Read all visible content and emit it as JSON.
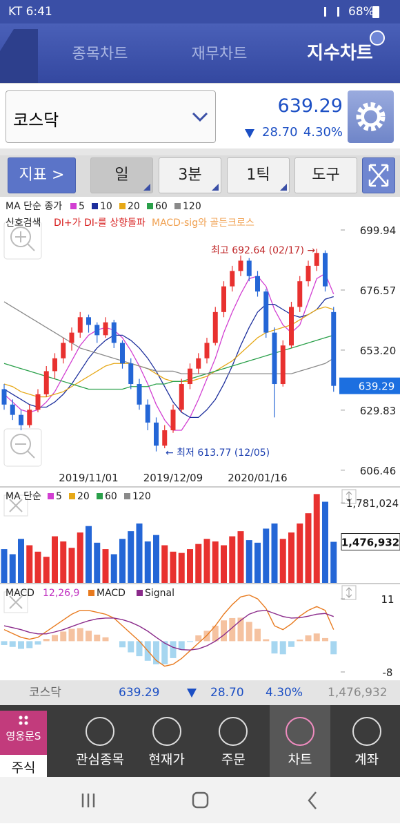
{
  "status_bar": {
    "carrier_time": "KT 6:41",
    "battery": "68%"
  },
  "tabs": [
    "종목차트",
    "재무차트",
    "지수차트"
  ],
  "active_tab": 2,
  "index_selector": {
    "name": "코스닥",
    "price": "639.29",
    "change": "28.70",
    "change_pct": "4.30%"
  },
  "toolbar": {
    "indicator": "지표",
    "periods": [
      "일",
      "3분",
      "1틱"
    ],
    "active_period": 0,
    "tool": "도구"
  },
  "chart": {
    "type": "candlestick",
    "candles": [
      [
        638,
        640,
        630,
        632
      ],
      [
        632,
        634,
        626,
        628
      ],
      [
        628,
        630,
        622,
        624
      ],
      [
        624,
        632,
        623,
        630
      ],
      [
        630,
        638,
        629,
        636
      ],
      [
        636,
        647,
        635,
        645
      ],
      [
        645,
        652,
        642,
        650
      ],
      [
        650,
        658,
        648,
        656
      ],
      [
        656,
        662,
        653,
        660
      ],
      [
        660,
        668,
        658,
        666
      ],
      [
        666,
        667,
        660,
        663
      ],
      [
        663,
        664,
        656,
        659
      ],
      [
        659,
        666,
        658,
        664
      ],
      [
        664,
        665,
        654,
        656
      ],
      [
        656,
        657,
        646,
        648
      ],
      [
        648,
        650,
        638,
        640
      ],
      [
        640,
        642,
        630,
        632
      ],
      [
        632,
        634,
        622,
        625
      ],
      [
        625,
        627,
        613.77,
        616
      ],
      [
        616,
        624,
        615,
        622
      ],
      [
        622,
        632,
        621,
        630
      ],
      [
        630,
        642,
        629,
        640
      ],
      [
        640,
        648,
        638,
        646
      ],
      [
        646,
        652,
        644,
        650
      ],
      [
        650,
        658,
        648,
        656
      ],
      [
        656,
        670,
        655,
        668
      ],
      [
        668,
        680,
        666,
        678
      ],
      [
        678,
        686,
        676,
        684
      ],
      [
        684,
        690,
        682,
        688
      ],
      [
        688,
        689,
        680,
        682
      ],
      [
        682,
        684,
        674,
        676
      ],
      [
        676,
        677,
        658,
        660
      ],
      [
        660,
        662,
        627,
        640
      ],
      [
        640,
        657,
        639,
        655
      ],
      [
        655,
        672,
        654,
        670
      ],
      [
        670,
        682,
        668,
        680
      ],
      [
        680,
        688,
        678,
        686
      ],
      [
        686,
        692.64,
        684,
        691
      ],
      [
        691,
        692,
        676,
        678
      ],
      [
        668,
        670,
        637,
        639.29
      ]
    ],
    "categories": [
      null,
      null,
      null,
      null,
      null,
      null,
      null,
      null,
      null,
      null,
      "2019/11/01",
      null,
      null,
      null,
      null,
      null,
      null,
      null,
      null,
      null,
      "2019/12/09",
      null,
      null,
      null,
      null,
      null,
      null,
      null,
      null,
      null,
      "2020/01/16",
      null,
      null,
      null,
      null,
      null,
      null,
      null,
      null,
      null
    ],
    "ylim": [
      600.5,
      711.5
    ],
    "yticks": [
      699.94,
      676.57,
      {
        "value": 653.2,
        "label": "653.20"
      },
      629.83,
      606.46
    ],
    "last": 639.29,
    "up_color": "#e8312f",
    "down_color": "#2466d6",
    "ma_title": "MA 단순 종가",
    "series": [
      {
        "name": "5",
        "color": "#d23fd2",
        "values": [
          636,
          633,
          630,
          629,
          630,
          633,
          637,
          643,
          649,
          655,
          659,
          661,
          662,
          661,
          658,
          653,
          647,
          640,
          632,
          626,
          622,
          622,
          627,
          634,
          642,
          650,
          660,
          668,
          675,
          681,
          682,
          678,
          669,
          663,
          660,
          663,
          672,
          681,
          683,
          675
        ]
      },
      {
        "name": "10",
        "color": "#1c2e9c",
        "values": [
          638,
          636,
          634,
          632,
          631,
          631,
          633,
          636,
          640,
          645,
          650,
          654,
          657,
          659,
          659,
          657,
          654,
          650,
          645,
          639,
          633,
          629,
          627,
          627,
          630,
          634,
          640,
          647,
          655,
          662,
          668,
          671,
          671,
          669,
          667,
          666,
          667,
          669,
          673,
          674
        ]
      },
      {
        "name": "20",
        "color": "#e6a817",
        "values": [
          640,
          639,
          637,
          636,
          635,
          635,
          636,
          637,
          639,
          641,
          643,
          645,
          647,
          648,
          648,
          648,
          647,
          646,
          644,
          642,
          641,
          641,
          641,
          642,
          643,
          645,
          647,
          649,
          652,
          655,
          658,
          660,
          661,
          662,
          663,
          665,
          667,
          669,
          670,
          669
        ]
      },
      {
        "name": "60",
        "color": "#2aa04a",
        "values": [
          648,
          647,
          646,
          645,
          644,
          643,
          642,
          641,
          640,
          639,
          638,
          638,
          638,
          638,
          638,
          639,
          639,
          639,
          640,
          640,
          641,
          641,
          642,
          643,
          644,
          645,
          646,
          647,
          648,
          649,
          650,
          651,
          652,
          653,
          654,
          655,
          656,
          657,
          658,
          659
        ]
      },
      {
        "name": "120",
        "color": "#8a8a8a",
        "values": [
          672,
          670,
          668,
          666,
          664,
          662,
          660,
          658,
          656,
          654,
          653,
          652,
          651,
          650,
          649,
          648,
          647,
          646,
          645,
          645,
          645,
          644,
          644,
          644,
          644,
          644,
          644,
          644,
          644,
          644,
          644,
          644,
          644,
          644,
          644,
          645,
          646,
          647,
          648,
          650
        ]
      }
    ],
    "signal": {
      "title": "신호검색",
      "items": [
        {
          "text": "DI+가 DI-를 상향돌파",
          "color": "#d82020"
        },
        {
          "text": "MACD-sig와 골든크로스",
          "color": "#f0a050"
        }
      ]
    },
    "annotations": {
      "high": "최고 692.64 (02/17) →",
      "low": "← 최저 613.77 (12/05)"
    }
  },
  "volume": {
    "ma_title": "MA 단순",
    "legend": [
      {
        "name": "5",
        "color": "#d23fd2"
      },
      {
        "name": "20",
        "color": "#e6a817"
      },
      {
        "name": "60",
        "color": "#2aa04a"
      },
      {
        "name": "120",
        "color": "#8a8a8a"
      }
    ],
    "values": [
      1420000,
      1380000,
      1500000,
      1450000,
      1400000,
      1360000,
      1520000,
      1480000,
      1430000,
      1550000,
      1600000,
      1470000,
      1420000,
      1380000,
      1500000,
      1560000,
      1620000,
      1480000,
      1530000,
      1450000,
      1400000,
      1390000,
      1420000,
      1460000,
      1500000,
      1480000,
      1450000,
      1520000,
      1560000,
      1490000,
      1470000,
      1580000,
      1620000,
      1500000,
      1550000,
      1620000,
      1700000,
      1850000,
      1790000,
      1476932
    ],
    "ylim": [
      1156000,
      1879000
    ],
    "yticks": [
      {
        "value": 1781024,
        "label": "1,781,024"
      }
    ],
    "last": {
      "value": 1476932,
      "label": "1,476,932"
    }
  },
  "macd": {
    "title": "MACD",
    "params": "12,26,9",
    "params_color": "#c030c0",
    "series": [
      {
        "name": "MACD",
        "color": "#e87a1e",
        "values": [
          3,
          2,
          1,
          0.5,
          1,
          2.5,
          4,
          5.5,
          7,
          8,
          8,
          7.5,
          7,
          6,
          4,
          2,
          0,
          -2.5,
          -5,
          -6.5,
          -6,
          -4.5,
          -2.5,
          -0.5,
          1.5,
          4,
          7,
          9.5,
          11.5,
          12,
          11,
          8.5,
          4,
          3,
          4.5,
          6.5,
          8,
          9,
          8,
          3
        ]
      },
      {
        "name": "Signal",
        "color": "#8a2a8a",
        "values": [
          4,
          3.5,
          3,
          2.3,
          1.9,
          1.9,
          2.4,
          3,
          3.8,
          4.6,
          5.3,
          5.8,
          6,
          6,
          5.6,
          4.9,
          3.9,
          2.6,
          1,
          -0.5,
          -1.6,
          -2.2,
          -2.3,
          -2,
          -1.2,
          0,
          1.6,
          3.5,
          5.4,
          7,
          7.8,
          8,
          7.2,
          6.4,
          6,
          6.1,
          6.5,
          7,
          7.2,
          6.4
        ]
      }
    ],
    "histogram": [
      -1,
      -1.5,
      -2,
      -1.8,
      -0.9,
      0.6,
      1.6,
      2.5,
      3.2,
      3.4,
      2.7,
      1.7,
      1,
      0,
      -1.6,
      -2.9,
      -3.9,
      -5.1,
      -6,
      -6,
      -4.4,
      -2.3,
      -0.2,
      1.5,
      2.7,
      4,
      5.4,
      6,
      6.1,
      5,
      3.2,
      0.5,
      -3.2,
      -3.4,
      -1.5,
      0.4,
      1.5,
      2,
      0.8,
      -3.4
    ],
    "hist_pos_color": "#f5c2a0",
    "hist_neg_color": "#a6d6f0",
    "ylim": [
      -9.8,
      14.6
    ],
    "yticks": [
      11,
      -8
    ]
  },
  "summary": {
    "name": "코스닥",
    "price": "639.29",
    "change": "28.70",
    "change_pct": "4.30%",
    "volume": "1,476,932"
  },
  "nav": {
    "logo": "영웅문S",
    "items": [
      "주식",
      "관심종목",
      "현재가",
      "주문",
      "차트",
      "계좌"
    ],
    "active": 4
  }
}
